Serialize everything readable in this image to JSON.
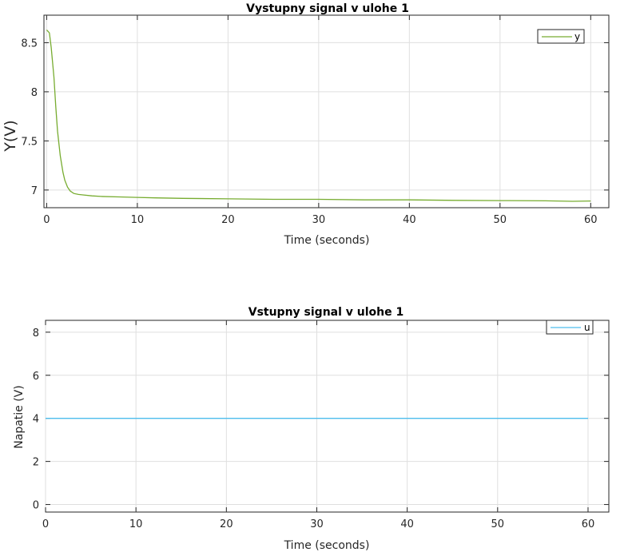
{
  "chart_data": [
    {
      "type": "line",
      "title": "Vystupny signal v ulohe 1",
      "xlabel": "Time (seconds)",
      "ylabel": "Y(V)",
      "xlim": [
        -0.3,
        62
      ],
      "ylim": [
        6.82,
        8.78
      ],
      "xticks": [
        0,
        10,
        20,
        30,
        40,
        50,
        60
      ],
      "yticks": [
        7,
        7.5,
        8,
        8.5
      ],
      "ytick_labels": [
        "7",
        "7.5",
        "8",
        "8.5"
      ],
      "grid": true,
      "legend_position": "top-right",
      "series": [
        {
          "name": "y",
          "color": "#77ac30",
          "x": [
            0,
            0.3,
            0.5,
            0.8,
            1.0,
            1.2,
            1.5,
            1.8,
            2.0,
            2.3,
            2.6,
            3.0,
            3.5,
            4.0,
            5.0,
            6.0,
            8.0,
            10.0,
            12.0,
            15.0,
            20.0,
            25.0,
            30.0,
            35.0,
            40.0,
            45.0,
            50.0,
            55.0,
            58.0,
            60.0
          ],
          "values": [
            8.63,
            8.6,
            8.45,
            8.15,
            7.85,
            7.6,
            7.35,
            7.18,
            7.1,
            7.03,
            6.99,
            6.965,
            6.955,
            6.95,
            6.94,
            6.935,
            6.93,
            6.925,
            6.92,
            6.915,
            6.91,
            6.905,
            6.905,
            6.9,
            6.9,
            6.895,
            6.892,
            6.89,
            6.885,
            6.888
          ]
        }
      ]
    },
    {
      "type": "line",
      "title": "Vstupny signal v ulohe 1",
      "xlabel": "Time (seconds)",
      "ylabel": "Napatie (V)",
      "xlim": [
        0,
        62.3
      ],
      "ylim": [
        -0.35,
        8.55
      ],
      "xticks": [
        0,
        10,
        20,
        30,
        40,
        50,
        60
      ],
      "yticks": [
        0,
        2,
        4,
        6,
        8
      ],
      "ytick_labels": [
        "0",
        "2",
        "4",
        "6",
        "8"
      ],
      "grid": true,
      "legend_position": "top-right",
      "series": [
        {
          "name": "u",
          "color": "#4dbeee",
          "x": [
            0,
            60
          ],
          "values": [
            4,
            4
          ]
        }
      ]
    }
  ]
}
